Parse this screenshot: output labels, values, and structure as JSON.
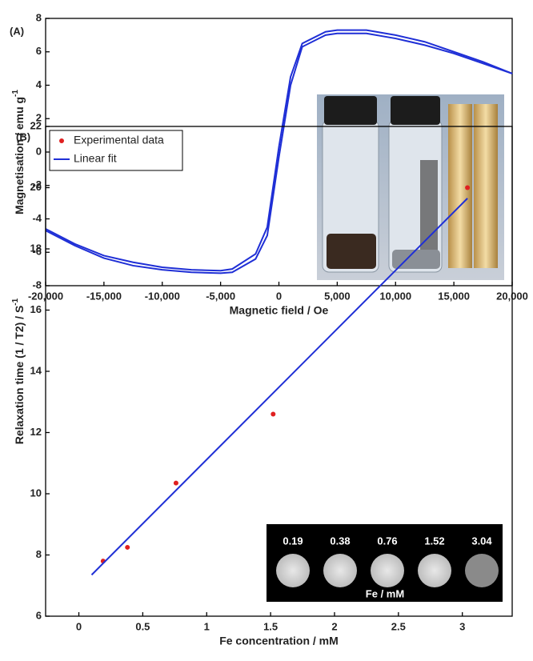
{
  "chart_data": [
    {
      "type": "line",
      "panel_label": "(A)",
      "x_label": "Magnetic field / Oe",
      "y_label": "Magnetisation / emu g",
      "y_label_superscript": "-1",
      "x": [
        -20000,
        -17500,
        -15000,
        -12500,
        -10000,
        -7500,
        -5000,
        -4000,
        -2000,
        -1000,
        0,
        1000,
        2000,
        4000,
        5000,
        7500,
        10000,
        12500,
        15000,
        17500,
        20000
      ],
      "series": [
        {
          "color": "#1f2fd6",
          "values": [
            -4.6,
            -5.5,
            -6.2,
            -6.6,
            -6.9,
            -7.05,
            -7.1,
            -7.0,
            -6.1,
            -4.5,
            0.3,
            4.5,
            6.5,
            7.2,
            7.3,
            7.3,
            7.0,
            6.6,
            6.0,
            5.4,
            4.7
          ]
        },
        {
          "color": "#1f2fd6",
          "values": [
            -4.7,
            -5.6,
            -6.35,
            -6.8,
            -7.05,
            -7.2,
            -7.25,
            -7.2,
            -6.4,
            -5.0,
            -0.3,
            4.0,
            6.3,
            7.0,
            7.1,
            7.1,
            6.8,
            6.4,
            5.9,
            5.3,
            4.7
          ]
        }
      ],
      "xlim": [
        -20000,
        20000
      ],
      "ylim": [
        -8,
        8
      ],
      "xticks": [
        {
          "value": -20000,
          "label": "-20,000"
        },
        {
          "value": -15000,
          "label": "-15,000"
        },
        {
          "value": -10000,
          "label": "-10,000"
        },
        {
          "value": -5000,
          "label": "-5,000"
        },
        0,
        {
          "value": 5000,
          "label": "5,000"
        },
        {
          "value": 10000,
          "label": "10,000"
        },
        {
          "value": 15000,
          "label": "15,000"
        },
        {
          "value": 20000,
          "label": "20,000"
        }
      ],
      "yticks": [
        -8,
        -6,
        -4,
        -2,
        0,
        2,
        4,
        6,
        8
      ]
    },
    {
      "type": "scatter",
      "panel_label": "(B)",
      "x_label": "Fe concentration / mM",
      "y_label": "Relaxation time (1 / T2) / S",
      "y_label_superscript": "-1",
      "series": [
        {
          "name": "Experimental data",
          "type": "scatter",
          "color": "#e02020",
          "x": [
            0.19,
            0.38,
            0.76,
            1.52,
            3.04
          ],
          "values": [
            7.8,
            8.25,
            10.35,
            12.6,
            20.0
          ]
        },
        {
          "name": "Linear fit",
          "type": "line",
          "color": "#1f2fd6",
          "x": [
            0.1,
            3.04
          ],
          "values": [
            7.35,
            19.65
          ]
        }
      ],
      "xlim": [
        -0.26,
        3.39
      ],
      "ylim": [
        6,
        22
      ],
      "xticks": [
        0,
        0.5,
        1,
        1.5,
        2,
        2.5,
        3
      ],
      "yticks": [
        6,
        8,
        10,
        12,
        14,
        16,
        18,
        20,
        22
      ],
      "legend": "upper left",
      "inset": {
        "labels": [
          "0.19",
          "0.38",
          "0.76",
          "1.52",
          "3.04"
        ],
        "caption": "Fe / mM"
      }
    }
  ]
}
